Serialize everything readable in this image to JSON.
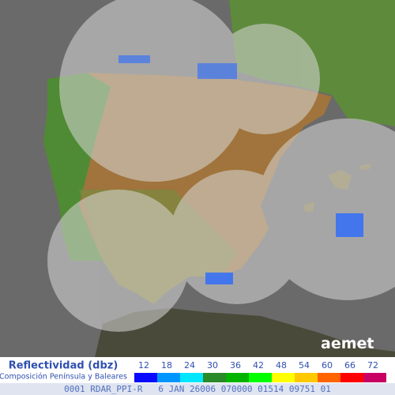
{
  "legend": {
    "title": "Reflectividad (dbz)",
    "subtitle": "Composición Península y Baleares",
    "ticks": [
      12,
      18,
      24,
      30,
      36,
      42,
      48,
      54,
      60,
      66,
      72
    ],
    "colors": [
      "#0a0aff",
      "#0096ff",
      "#00e6ff",
      "#2a8a2a",
      "#00b400",
      "#00ff00",
      "#ffff00",
      "#ffc800",
      "#ff6400",
      "#ff0000",
      "#c80064"
    ]
  },
  "logo": {
    "text": "aemet"
  },
  "footer": {
    "code": "0001 RDAR_PPI-R   6 JAN 26006 070000 01514 09751 01"
  }
}
